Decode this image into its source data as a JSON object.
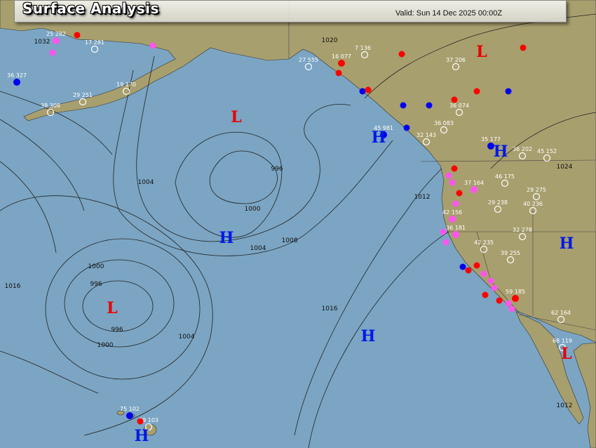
{
  "header": {
    "title": "Surface Analysis",
    "valid": "Valid: Sun 14 Dec 2025 00:00Z"
  },
  "colors": {
    "ocean": "#7ba5c3",
    "land": "#a89f6e",
    "high": "#0018e8",
    "low": "#e80000",
    "isobar": "#222222"
  },
  "pressure_centers": [
    {
      "type": "L",
      "label": "L"
    },
    {
      "type": "L",
      "label": "L"
    },
    {
      "type": "L",
      "label": "L"
    },
    {
      "type": "H",
      "label": "H"
    },
    {
      "type": "H",
      "label": "H"
    },
    {
      "type": "H",
      "label": "H"
    },
    {
      "type": "H",
      "label": "H"
    },
    {
      "type": "H",
      "label": "H"
    },
    {
      "type": "H",
      "label": "H"
    },
    {
      "type": "L",
      "label": "L"
    }
  ],
  "isobar_labels": [
    "996",
    "1000",
    "1004",
    "1008",
    "1012",
    "1016",
    "996",
    "1000",
    "1004",
    "1000",
    "996",
    "1004",
    "1012",
    "1024",
    "1032",
    "1016",
    "1020"
  ],
  "stations": [
    {
      "label": "36 181"
    },
    {
      "label": "37 164"
    },
    {
      "label": "46 175"
    },
    {
      "label": "36 202"
    },
    {
      "label": "29 238"
    },
    {
      "label": "40 236"
    },
    {
      "label": "42 156"
    },
    {
      "label": "35 177"
    },
    {
      "label": "36 083"
    },
    {
      "label": "32 143"
    },
    {
      "label": "45 981"
    },
    {
      "label": "42 235"
    },
    {
      "label": "39 255"
    },
    {
      "label": "59 185"
    },
    {
      "label": "62 164"
    },
    {
      "label": "68 119"
    },
    {
      "label": "75 102"
    },
    {
      "label": "79 103"
    },
    {
      "label": "29 251"
    },
    {
      "label": "36 327"
    },
    {
      "label": "38 308"
    },
    {
      "label": "37 206"
    },
    {
      "label": "36 074"
    },
    {
      "label": "45 152"
    },
    {
      "label": "29 275"
    },
    {
      "label": "32 278"
    },
    {
      "label": "16 077"
    },
    {
      "label": "7 136"
    },
    {
      "label": "25 282"
    },
    {
      "label": "17 281"
    },
    {
      "label": "19 170"
    },
    {
      "label": "27 555"
    }
  ]
}
